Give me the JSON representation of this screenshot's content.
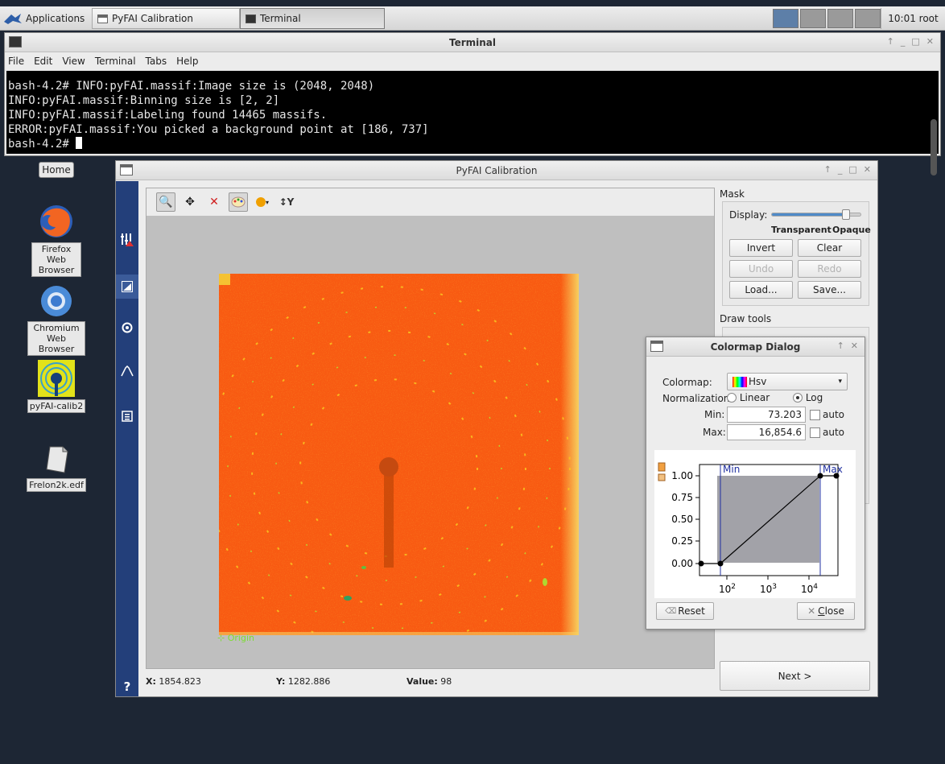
{
  "taskbar": {
    "applications_label": "Applications",
    "tasks": [
      {
        "label": "PyFAI Calibration"
      },
      {
        "label": "Terminal"
      }
    ],
    "clock": "10:01",
    "user": "root"
  },
  "terminal": {
    "title": "Terminal",
    "menu": [
      "File",
      "Edit",
      "View",
      "Terminal",
      "Tabs",
      "Help"
    ],
    "lines": [
      "bash-4.2# INFO:pyFAI.massif:Image size is (2048, 2048)",
      "INFO:pyFAI.massif:Binning size is [2, 2]",
      "INFO:pyFAI.massif:Labeling found 14465 massifs.",
      "ERROR:pyFAI.massif:You picked a background point at [186, 737]"
    ],
    "prompt": "bash-4.2# "
  },
  "desktop": {
    "home_label": "Home",
    "icons": [
      {
        "label": "Firefox Web Browser"
      },
      {
        "label": "Chromium Web Browser"
      },
      {
        "label": "pyFAI-calib2"
      },
      {
        "label": "Frelon2k.edf"
      }
    ]
  },
  "pyfai": {
    "title": "PyFAI Calibration",
    "origin_label": "Origin",
    "status": {
      "x_label": "X:",
      "x_value": "1854.823",
      "y_label": "Y:",
      "y_value": "1282.886",
      "value_label": "Value:",
      "value": "98"
    },
    "nav_help": "?",
    "mask": {
      "title": "Mask",
      "display_label": "Display:",
      "display_level": 0.82,
      "transparent_label": "Transparent",
      "opaque_label": "Opaque",
      "buttons": [
        "Invert",
        "Clear",
        "Undo",
        "Redo",
        "Load...",
        "Save..."
      ],
      "draw_tools_label": "Draw tools"
    },
    "next_label": "Next >"
  },
  "colormap_dialog": {
    "title": "Colormap Dialog",
    "colormap_label": "Colormap:",
    "colormap_value": "Hsv",
    "normalization_label": "Normalization:",
    "linear_label": "Linear",
    "log_label": "Log",
    "normalization_selected": "Log",
    "min_label": "Min:",
    "min_value": "73.203",
    "max_label": "Max:",
    "max_value": "16,854.6",
    "auto_label": "auto",
    "plot": {
      "y_ticks": [
        "1.00",
        "0.75",
        "0.50",
        "0.25",
        "0.00"
      ],
      "x_ticks": [
        "10",
        "10",
        "10"
      ],
      "x_exps": [
        "2",
        "3",
        "4"
      ],
      "min_marker": "Min",
      "max_marker": "Max"
    },
    "reset_label": "Reset",
    "close_label": "Close",
    "close_mnemonic": "C",
    "close_rest": "lose"
  }
}
